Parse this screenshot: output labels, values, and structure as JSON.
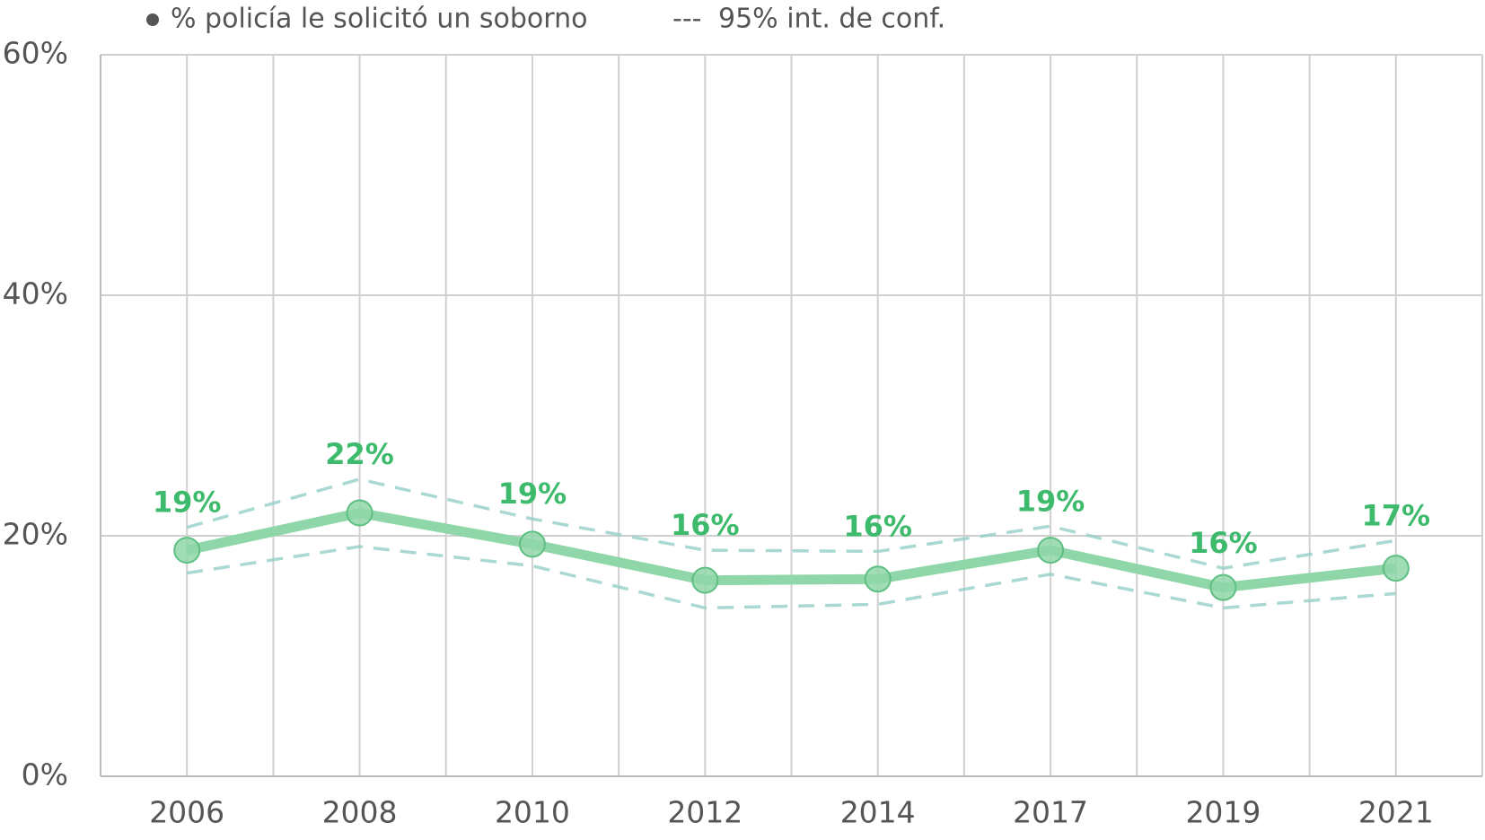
{
  "chart_data": {
    "type": "line",
    "categories": [
      "2006",
      "2008",
      "2010",
      "2012",
      "2014",
      "2017",
      "2019",
      "2021"
    ],
    "series": [
      {
        "name": "% policía le solicitó un soborno",
        "color": "#8fd6a8",
        "label_color": "#3dba6c",
        "values": [
          18.8,
          21.9,
          19.3,
          16.3,
          16.4,
          18.8,
          15.7,
          17.3
        ],
        "value_labels": [
          "19%",
          "22%",
          "19%",
          "16%",
          "16%",
          "19%",
          "16%",
          "17%"
        ]
      }
    ],
    "ci": {
      "name": "95% int. de conf.",
      "color": "#94cfc7",
      "upper": [
        20.7,
        24.7,
        21.4,
        18.8,
        18.7,
        20.8,
        17.3,
        19.6
      ],
      "lower": [
        16.9,
        19.1,
        17.5,
        14.0,
        14.3,
        16.8,
        14.0,
        15.2
      ]
    },
    "ylim": [
      0,
      60
    ],
    "yticks": [
      {
        "value": 0,
        "label": "0%"
      },
      {
        "value": 20,
        "label": "20%"
      },
      {
        "value": 40,
        "label": "40%"
      },
      {
        "value": 60,
        "label": "60%"
      }
    ],
    "grid": true
  }
}
